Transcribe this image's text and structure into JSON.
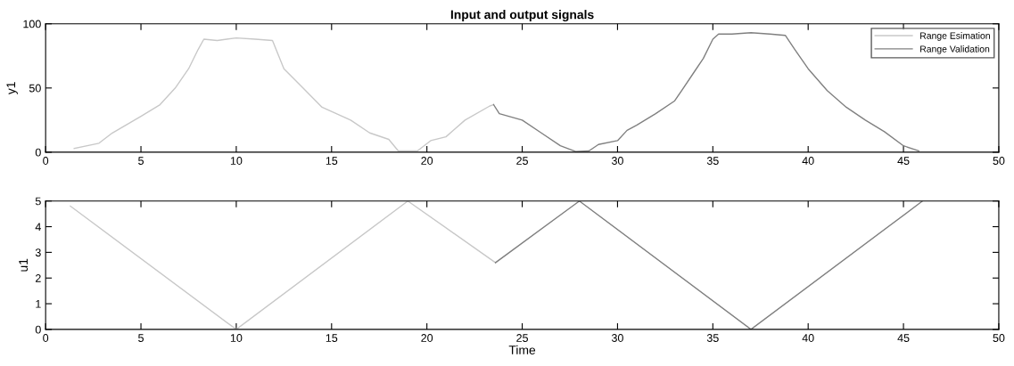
{
  "chart_data": [
    {
      "type": "line",
      "title": "Input and output signals",
      "ylabel": "y1",
      "xlim": [
        0,
        50
      ],
      "ylim": [
        0,
        100
      ],
      "xticks": [
        0,
        5,
        10,
        15,
        20,
        25,
        30,
        35,
        40,
        45,
        50
      ],
      "yticks": [
        0,
        50,
        100
      ],
      "grid": false,
      "legend": "top right",
      "series": [
        {
          "name": "Range Esimation",
          "color": "#c8c8c8",
          "x": [
            1.5,
            2.8,
            3.5,
            5,
            6,
            6.8,
            7.5,
            8,
            8.3,
            9,
            10,
            11,
            11.9,
            12.5,
            13.5,
            14.5,
            16,
            17,
            18,
            18.5,
            19.5,
            20.2,
            21,
            22,
            23.3,
            23.5
          ],
          "values": [
            3,
            7,
            15,
            28,
            37,
            50,
            65,
            80,
            88,
            87,
            89,
            88,
            87,
            65,
            50,
            35,
            25,
            15,
            10,
            1,
            1,
            9,
            12,
            25,
            36,
            37
          ]
        },
        {
          "name": "Range Validation",
          "color": "#808080",
          "x": [
            23.5,
            23.8,
            25,
            26,
            27,
            27.8,
            28.5,
            29,
            30,
            30.5,
            31,
            32,
            33,
            34,
            34.5,
            35,
            35.3,
            36,
            37,
            38,
            38.8,
            39.3,
            40,
            41,
            42,
            43,
            44,
            45,
            45.8
          ],
          "values": [
            37,
            30,
            25,
            15,
            5,
            0.5,
            1,
            6,
            9,
            17,
            21,
            30,
            40,
            62,
            73,
            88,
            92,
            92,
            93,
            92,
            91,
            80,
            65,
            48,
            35,
            25,
            16,
            5,
            1
          ]
        }
      ]
    },
    {
      "type": "line",
      "ylabel": "u1",
      "xlabel": "Time",
      "xlim": [
        0,
        50
      ],
      "ylim": [
        0,
        5
      ],
      "xticks": [
        0,
        5,
        10,
        15,
        20,
        25,
        30,
        35,
        40,
        45,
        50
      ],
      "yticks": [
        0,
        1,
        2,
        3,
        4,
        5
      ],
      "grid": false,
      "series": [
        {
          "color": "#c8c8c8",
          "x": [
            1.3,
            10,
            19,
            23.6
          ],
          "values": [
            4.8,
            0,
            5,
            2.6
          ]
        },
        {
          "color": "#808080",
          "x": [
            23.6,
            28,
            37,
            46
          ],
          "values": [
            2.6,
            5,
            0,
            5
          ]
        }
      ]
    }
  ]
}
